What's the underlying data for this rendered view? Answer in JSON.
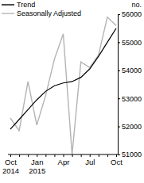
{
  "chart_data": {
    "type": "line",
    "categories": [
      "Oct 2014",
      null,
      null,
      "Jan 2015",
      null,
      null,
      "Apr",
      null,
      null,
      "Jul",
      null,
      null,
      "Oct"
    ],
    "series": [
      {
        "name": "Trend",
        "color": "#000000",
        "values": [
          51900,
          52250,
          52600,
          52950,
          53250,
          53450,
          53550,
          53600,
          53750,
          54050,
          54500,
          55000,
          55500
        ]
      },
      {
        "name": "Seasonally Adjusted",
        "color": "#b3b3b3",
        "values": [
          52300,
          51850,
          53600,
          52050,
          53100,
          54400,
          55300,
          51000,
          54300,
          54100,
          54550,
          55900,
          55600
        ]
      }
    ],
    "y_label": "no.",
    "ylim": [
      51000,
      56000
    ],
    "yticks": [
      51000,
      52000,
      53000,
      54000,
      55000,
      56000
    ],
    "grid": false,
    "legend": "top-left"
  }
}
